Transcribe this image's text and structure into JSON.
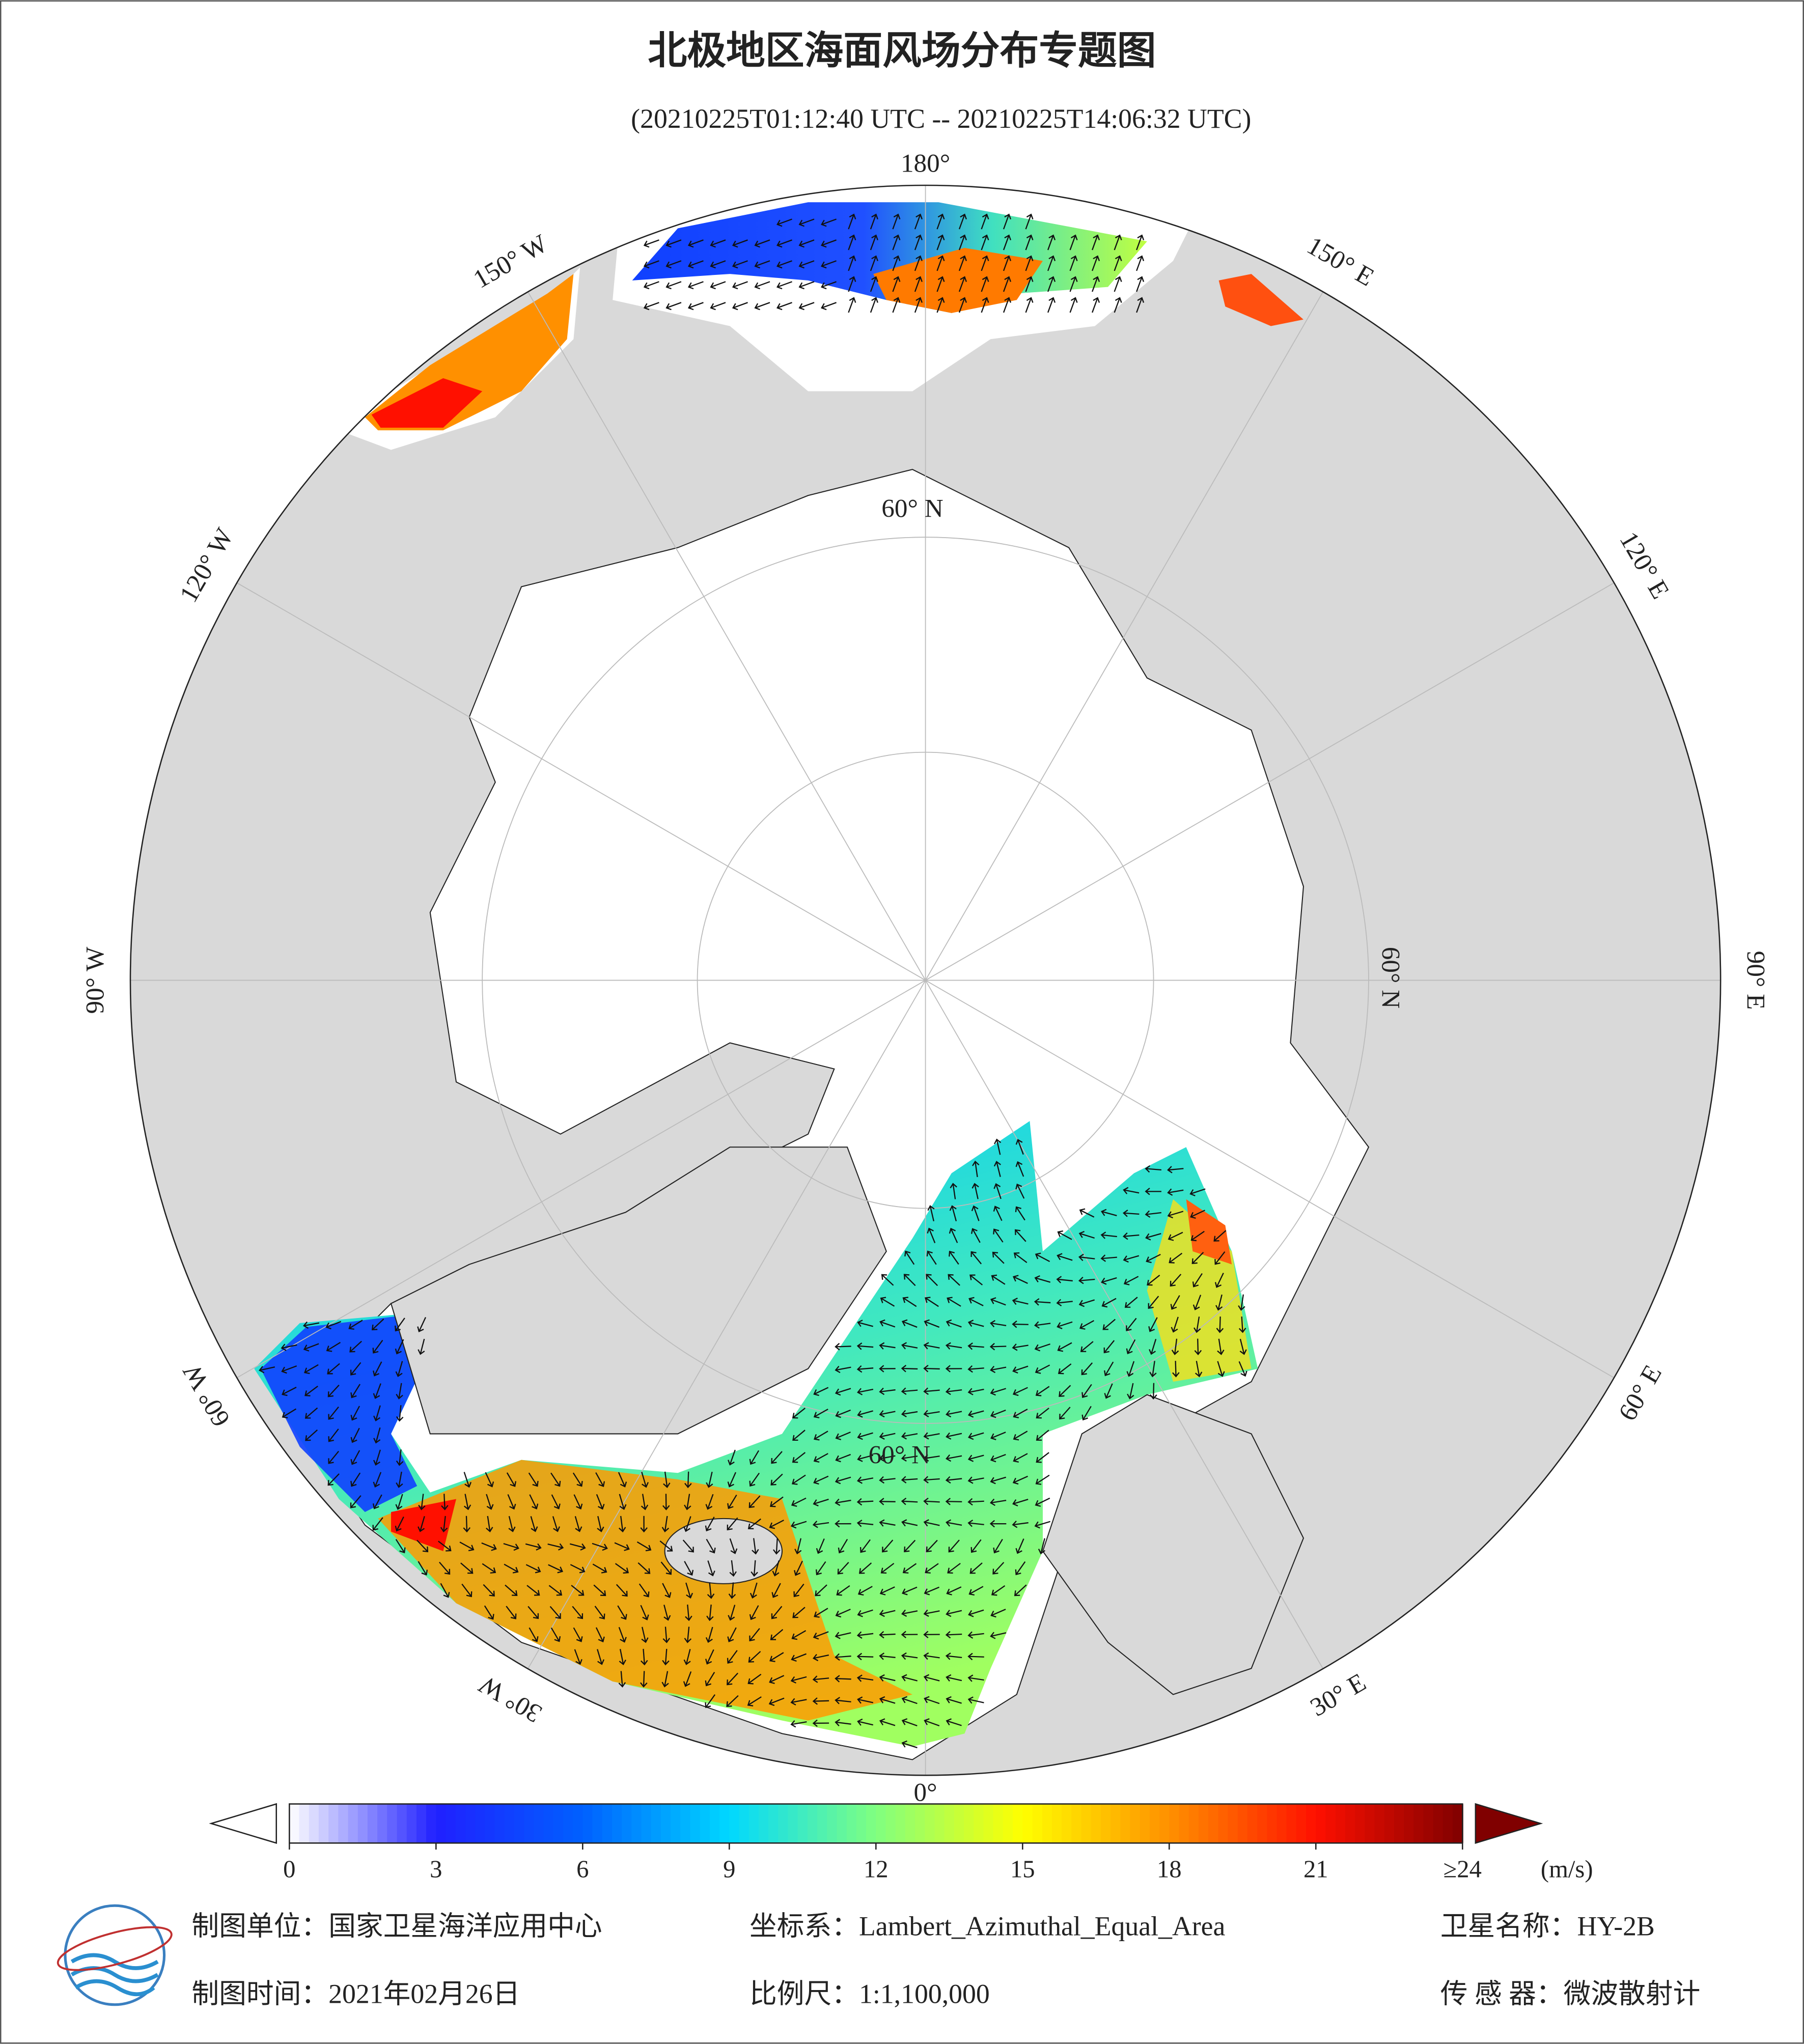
{
  "header": {
    "title": "北极地区海面风场分布专题图",
    "subtitle": "(20210225T01:12:40 UTC -- 20210225T14:06:32 UTC)"
  },
  "map": {
    "longitude_labels": [
      "180°",
      "150° E",
      "120° E",
      "90° E",
      "60° E",
      "30° E",
      "0°",
      "30° W",
      "60° W",
      "90° W",
      "120° W",
      "150° W"
    ],
    "latitude_label": "60° N"
  },
  "colorbar": {
    "lim": [
      0,
      24
    ],
    "ticks": [
      0,
      3,
      6,
      9,
      12,
      15,
      18,
      21,
      {
        "value": 24,
        "label": "≥24"
      }
    ],
    "unit": "(m/s)",
    "colors": [
      "#ffffff",
      "#2020ff",
      "#0060ff",
      "#00d8ff",
      "#80ff80",
      "#ffff00",
      "#ff9000",
      "#ff1000",
      "#800000"
    ]
  },
  "footer": {
    "unit": "制图单位：国家卫星海洋应用中心",
    "crs": "坐标系：Lambert_Azimuthal_Equal_Area",
    "satellite": "卫星名称：HY-2B",
    "date": "制图时间：2021年02月26日",
    "scale": "比例尺：1:1,100,000",
    "sensor": "传 感 器：微波散射计"
  }
}
